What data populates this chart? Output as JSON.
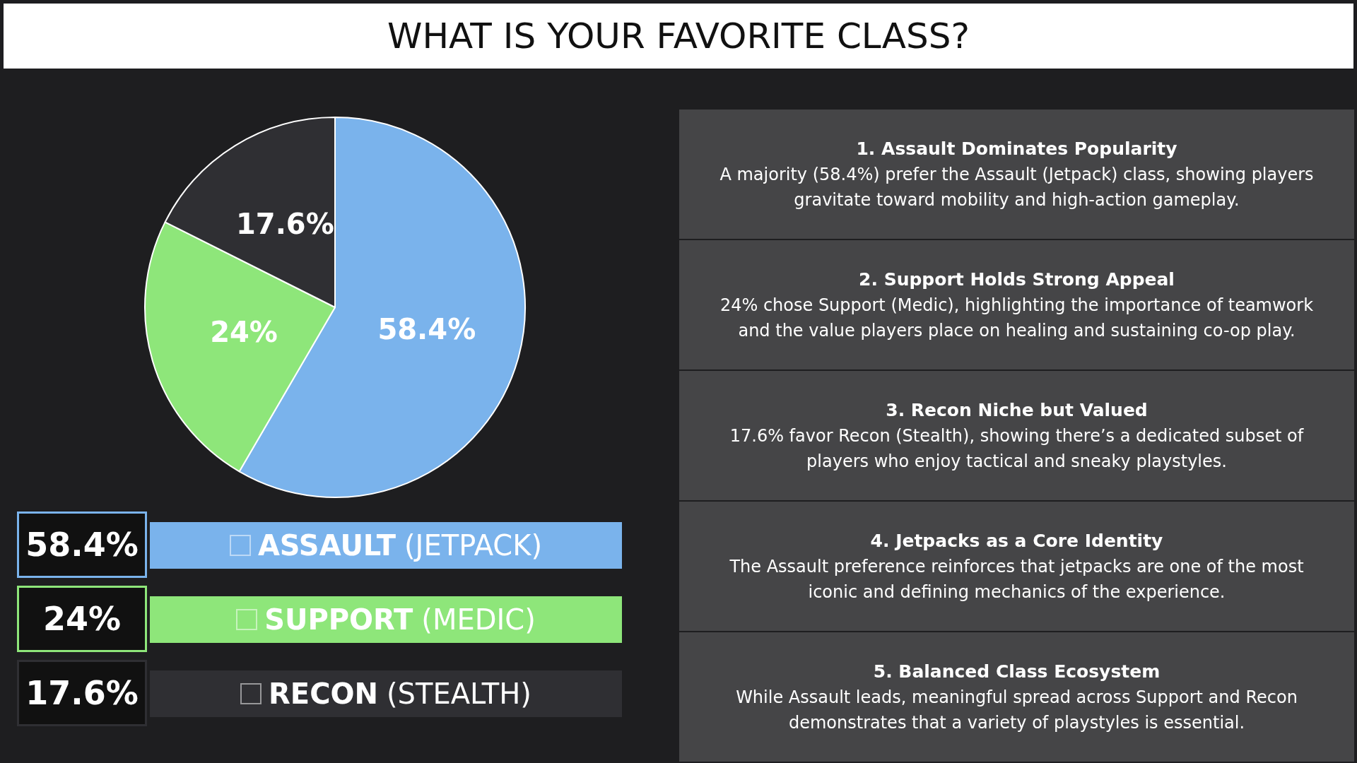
{
  "chart_data": {
    "type": "pie",
    "title": "WHAT IS YOUR FAVORITE CLASS?",
    "categories": [
      "ASSAULT (JETPACK)",
      "SUPPORT (MEDIC)",
      "RECON (STEALTH)"
    ],
    "values": [
      58.4,
      24,
      17.6
    ],
    "value_labels": [
      "58.4%",
      "24%",
      "17.6%"
    ],
    "colors": [
      "#7ab3ec",
      "#8ee67a",
      "#2f2f33"
    ],
    "legend": "bottom",
    "annotations": [
      "1. Assault Dominates Popularity",
      "A majority (58.4%) prefer the Assault (Jetpack) class, showing players gravitate toward mobility and high-action gameplay.",
      "2. Support Holds Strong Appeal",
      "24% chose Support (Medic), highlighting the importance of teamwork and the value players place on healing and sustaining co-op play.",
      "3. Recon Niche but Valued",
      "17.6% favor Recon (Stealth), showing there’s a dedicated subset of players who enjoy tactical and sneaky playstyles.",
      "4. Jetpacks as a Core Identity",
      "The Assault preference reinforces that jetpacks are one of the most iconic and defining mechanics of the experience.",
      "5. Balanced Class Ecosystem",
      "While Assault leads, meaningful spread across Support and Recon demonstrates that a variety of playstyles is essential."
    ]
  }
}
